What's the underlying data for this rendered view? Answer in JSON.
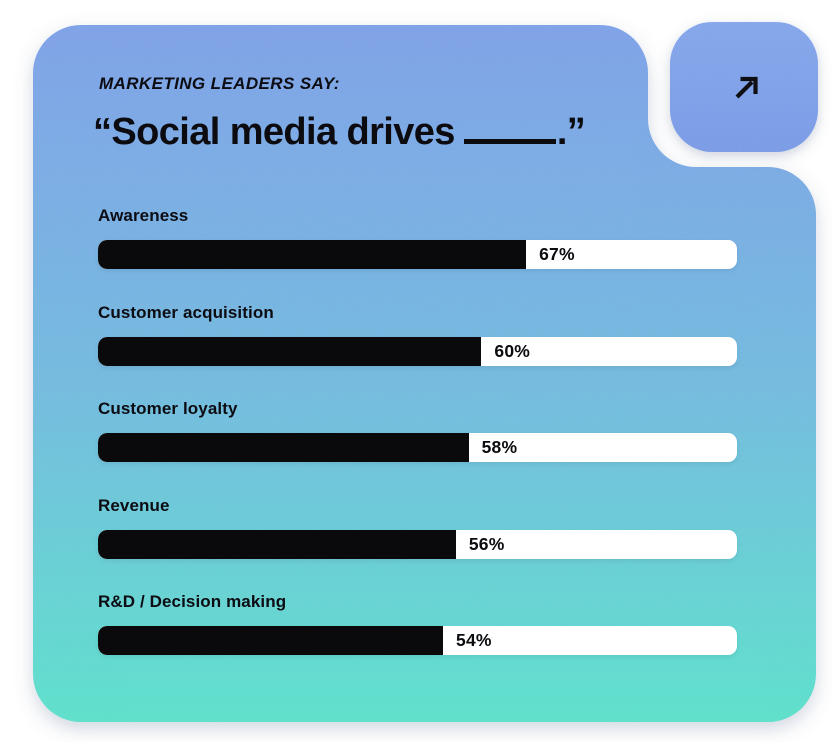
{
  "page": {
    "background": "#ffffff"
  },
  "card": {
    "kicker": "MARKETING LEADERS SAY:",
    "title_prefix": "“Social media drives",
    "title_suffix": ".”",
    "gradient_top": "#80a3e9",
    "gradient_mid": "#74bce0",
    "gradient_bottom": "#5fe2cd",
    "text_color": "#0b0b10"
  },
  "badge": {
    "icon": "arrow-up-right",
    "gradient_top": "#86a8ec",
    "gradient_bottom": "#7b9de8",
    "icon_color": "#0b0b10"
  },
  "chart_data": {
    "type": "bar",
    "orientation": "horizontal",
    "subtitle": "MARKETING LEADERS SAY:",
    "title": "“Social media drives ____.”",
    "categories": [
      "Awareness",
      "Customer acquisition",
      "Customer loyalty",
      "Revenue",
      "R&D / Decision making"
    ],
    "values": [
      67,
      60,
      58,
      56,
      54
    ],
    "value_labels": [
      "67%",
      "60%",
      "58%",
      "56%",
      "54%"
    ],
    "value_format": "percent",
    "xlim": [
      0,
      100
    ],
    "bar_fill": "#0a0a0c",
    "track_fill": "#ffffff",
    "grid": false,
    "legend": false
  }
}
